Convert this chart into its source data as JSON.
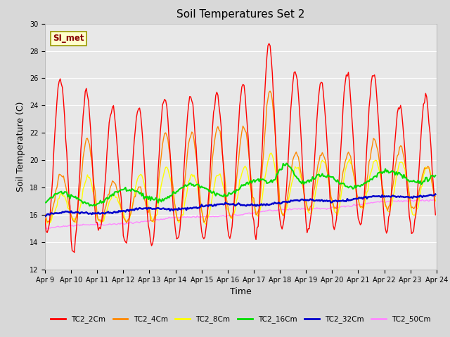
{
  "title": "Soil Temperatures Set 2",
  "xlabel": "Time",
  "ylabel": "Soil Temperature (C)",
  "ylim": [
    12,
    30
  ],
  "yticks": [
    12,
    14,
    16,
    18,
    20,
    22,
    24,
    26,
    28,
    30
  ],
  "x_tick_labels": [
    "Apr 9",
    "Apr 10",
    "Apr 11",
    "Apr 12",
    "Apr 13",
    "Apr 14",
    "Apr 15",
    "Apr 16",
    "Apr 17",
    "Apr 18",
    "Apr 19",
    "Apr 20",
    "Apr 21",
    "Apr 22",
    "Apr 23",
    "Apr 24"
  ],
  "annotation_text": "SI_met",
  "colors": {
    "TC2_2Cm": "#ff0000",
    "TC2_4Cm": "#ff8800",
    "TC2_8Cm": "#ffff00",
    "TC2_16Cm": "#00dd00",
    "TC2_32Cm": "#0000cc",
    "TC2_50Cm": "#ff88ff"
  },
  "bg_color": "#e8e8e8",
  "grid_color": "#ffffff",
  "fig_bg": "#d8d8d8"
}
